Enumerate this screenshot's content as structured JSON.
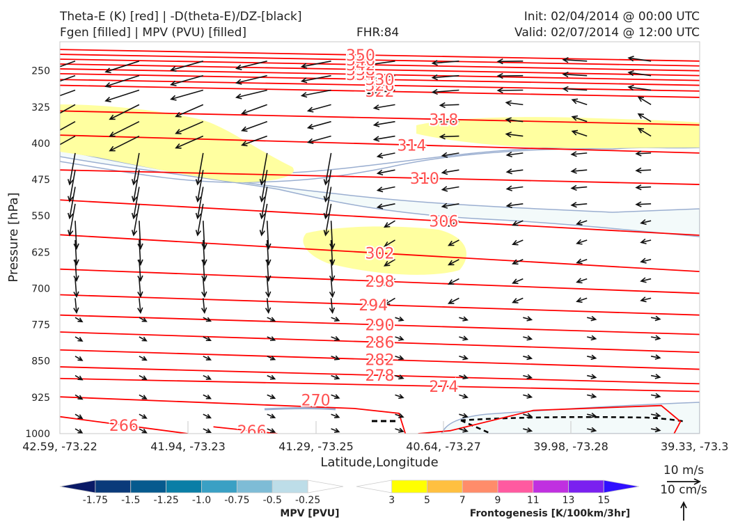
{
  "header": {
    "title_line1": "Theta-E (K) [red] | -D(theta-E)/DZ-[black]",
    "title_line2": "Fgen [filled] | MPV (PVU) [filled]",
    "fhr": "FHR:84",
    "init": "Init: 02/04/2014 @ 00:00 UTC",
    "valid": "Valid: 02/07/2014 @ 12:00 UTC"
  },
  "chart_data": {
    "type": "cross-section",
    "xlabel": "Latitude,Longitude",
    "ylabel": "Pressure [hPa]",
    "x_ticks": [
      "42.59, -73.22",
      "41.94, -73.23",
      "41.29, -73.25",
      "40.64, -73.27",
      "39.98, -73.28",
      "39.33, -73.3"
    ],
    "y_ticks": [
      250,
      325,
      400,
      475,
      550,
      625,
      700,
      775,
      850,
      925,
      1000
    ],
    "ylim": [
      1000,
      190
    ],
    "theta_e_contours": [
      {
        "label": "266",
        "p": [
          965,
          1000
        ]
      },
      {
        "label": "266",
        "p": [
          986,
          1000
        ]
      },
      {
        "label": "270",
        "p": [
          924,
          959
        ]
      },
      {
        "label": "274",
        "p": [
          886,
          913
        ]
      },
      {
        "label": "278",
        "p": [
          862,
          897
        ]
      },
      {
        "label": "282",
        "p": [
          827,
          867
        ]
      },
      {
        "label": "286",
        "p": [
          790,
          832
        ]
      },
      {
        "label": "290",
        "p": [
          755,
          795
        ]
      },
      {
        "label": "294",
        "p": [
          713,
          755
        ]
      },
      {
        "label": "298",
        "p": [
          660,
          710
        ]
      },
      {
        "label": "302",
        "p": [
          589,
          665
        ]
      },
      {
        "label": "306",
        "p": [
          517,
          590
        ]
      },
      {
        "label": "310",
        "p": [
          455,
          485
        ]
      },
      {
        "label": "314",
        "p": [
          383,
          420
        ]
      },
      {
        "label": "318",
        "p": [
          333,
          362
        ]
      },
      {
        "label": "322",
        "p": [
          280,
          305
        ]
      },
      {
        "label": "326",
        "p": [
          268,
          292
        ]
      },
      {
        "label": "330",
        "p": [
          256,
          280
        ]
      },
      {
        "label": "334",
        "p": [
          246,
          270
        ]
      },
      {
        "label": "338",
        "p": [
          236,
          260
        ]
      },
      {
        "label": "342",
        "p": [
          226,
          250
        ]
      },
      {
        "label": "346",
        "p": [
          216,
          240
        ]
      },
      {
        "label": "350",
        "p": [
          206,
          230
        ]
      }
    ],
    "fgen_colorbar": {
      "label": "Frontogenesis [K/100km/3hr]",
      "ticks": [
        "3",
        "5",
        "7",
        "9",
        "11",
        "13",
        "15"
      ],
      "colors": [
        "#ffffff",
        "#ffff00",
        "#ffc040",
        "#ff8c6a",
        "#ff5aa0",
        "#c030e0",
        "#7a20f0",
        "#3010ff"
      ]
    },
    "mpv_colorbar": {
      "label": "MPV [PVU]",
      "ticks": [
        "-1.75",
        "-1.5",
        "-1.25",
        "-1.0",
        "-0.75",
        "-0.5",
        "-0.25"
      ],
      "colors": [
        "#0a1a66",
        "#0a3a7a",
        "#065a8e",
        "#0a7ea6",
        "#3aa0c4",
        "#7ebcd6",
        "#bddde8",
        "#ffffff"
      ]
    },
    "vector_key": {
      "wind": "10 m/s",
      "vertical": "10 cm/s"
    },
    "colors": {
      "theta_e": "#ff0000",
      "theta_e_label": "#ff5050",
      "vectors": "#111111",
      "fgen_fill": "#ffffa0",
      "mpv_fill": "#f3fafa",
      "mpv_line": "#9aaed0"
    }
  }
}
